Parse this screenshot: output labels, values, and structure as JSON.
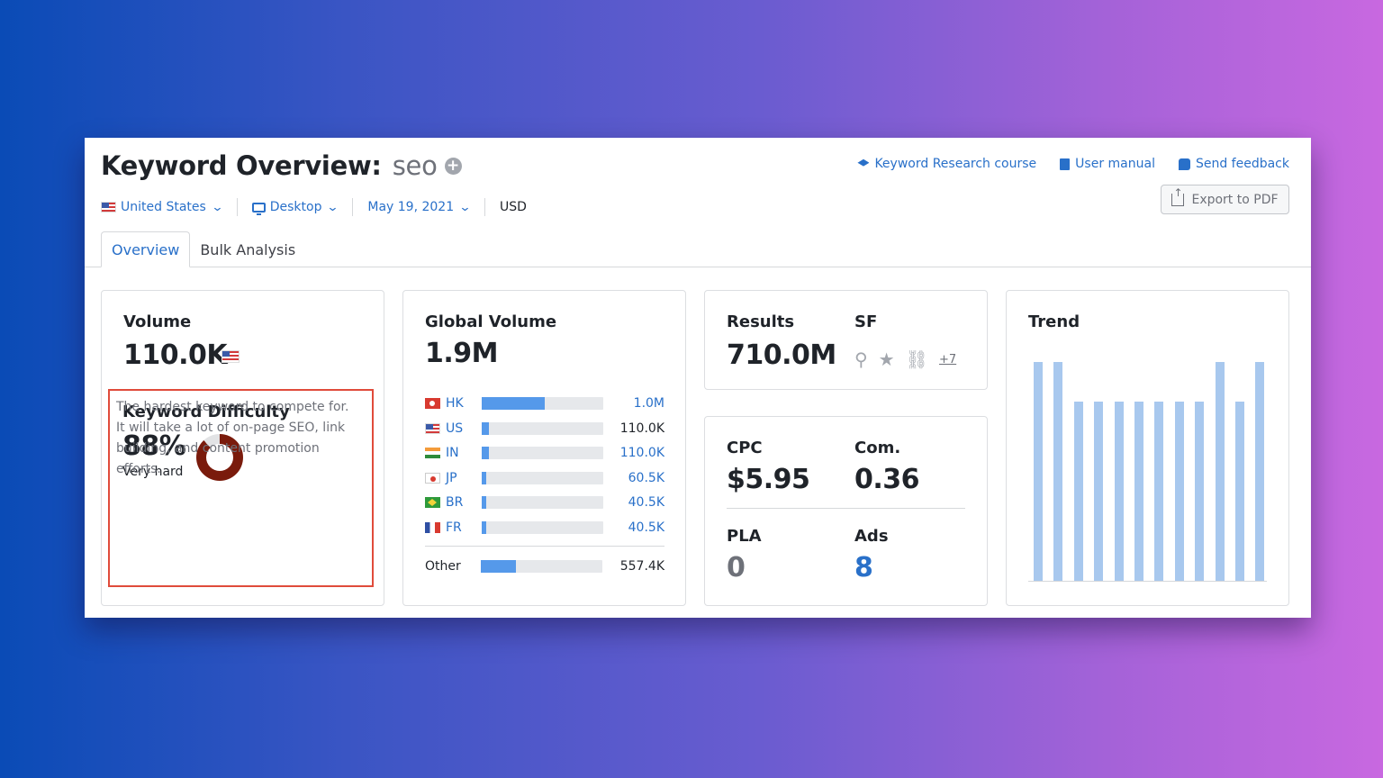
{
  "header": {
    "title": "Keyword Overview:",
    "keyword": "seo",
    "links": [
      "Keyword Research course",
      "User manual",
      "Send feedback"
    ],
    "export_label": "Export to PDF"
  },
  "filters": {
    "country": "United States",
    "device": "Desktop",
    "date": "May 19, 2021",
    "currency": "USD"
  },
  "tabs": [
    "Overview",
    "Bulk Analysis"
  ],
  "volume": {
    "label": "Volume",
    "value": "110.0K"
  },
  "difficulty": {
    "label": "Keyword Difficulty",
    "value": "88%",
    "level": "Very hard",
    "percent": 88,
    "description": "The hardest keyword to compete for. It will take a lot of on-page SEO, link building, and content promotion efforts."
  },
  "global_volume": {
    "label": "Global Volume",
    "value": "1.9M",
    "rows": [
      {
        "code": "HK",
        "value": "1.0M",
        "fraction": 0.52,
        "dark": false
      },
      {
        "code": "US",
        "value": "110.0K",
        "fraction": 0.06,
        "dark": true
      },
      {
        "code": "IN",
        "value": "110.0K",
        "fraction": 0.06,
        "dark": false
      },
      {
        "code": "JP",
        "value": "60.5K",
        "fraction": 0.03,
        "dark": false
      },
      {
        "code": "BR",
        "value": "40.5K",
        "fraction": 0.02,
        "dark": false
      },
      {
        "code": "FR",
        "value": "40.5K",
        "fraction": 0.02,
        "dark": false
      }
    ],
    "other": {
      "label": "Other",
      "value": "557.4K",
      "fraction": 0.29
    }
  },
  "results": {
    "label": "Results",
    "value": "710.0M",
    "sf_label": "SF",
    "sf_more": "+7"
  },
  "cpc": {
    "label": "CPC",
    "value": "$5.95"
  },
  "com": {
    "label": "Com.",
    "value": "0.36"
  },
  "pla": {
    "label": "PLA",
    "value": "0"
  },
  "ads": {
    "label": "Ads",
    "value": "8"
  },
  "trend": {
    "label": "Trend",
    "values": [
      1.0,
      1.0,
      0.82,
      0.82,
      0.82,
      0.82,
      0.82,
      0.82,
      0.82,
      1.0,
      0.82,
      1.0
    ]
  },
  "colors": {
    "accent": "#2970c9",
    "bar": "#5599ea",
    "trend": "#a8c8ee",
    "difficulty": "#7a1b0c",
    "highlight": "#e04b3b"
  }
}
